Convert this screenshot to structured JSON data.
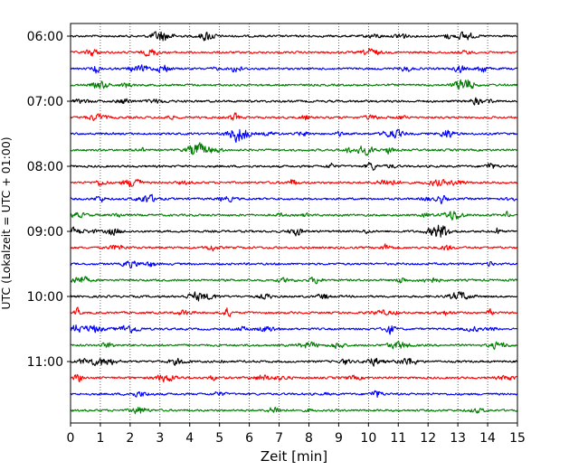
{
  "chart_data": {
    "type": "line",
    "chart_kind": "helicorder",
    "xlabel": "Zeit  [min]",
    "ylabel": "UTC (Lokalzeit = UTC + 01:00)",
    "xlim": [
      0,
      15
    ],
    "xticks": [
      "0",
      "1",
      "2",
      "3",
      "4",
      "5",
      "6",
      "7",
      "8",
      "9",
      "10",
      "11",
      "12",
      "13",
      "14",
      "15"
    ],
    "yticks": [
      "06:00",
      "07:00",
      "08:00",
      "09:00",
      "10:00",
      "11:00"
    ],
    "grid": "vertical dotted lines at each minute",
    "trace_colors": [
      "#000000",
      "#ff0000",
      "#0000ff",
      "#008000"
    ],
    "traces": [
      {
        "start": "06:00",
        "color": "#000000"
      },
      {
        "start": "06:15",
        "color": "#ff0000"
      },
      {
        "start": "06:30",
        "color": "#0000ff"
      },
      {
        "start": "06:45",
        "color": "#008000"
      },
      {
        "start": "07:00",
        "color": "#000000"
      },
      {
        "start": "07:15",
        "color": "#ff0000"
      },
      {
        "start": "07:30",
        "color": "#0000ff"
      },
      {
        "start": "07:45",
        "color": "#008000"
      },
      {
        "start": "08:00",
        "color": "#000000"
      },
      {
        "start": "08:15",
        "color": "#ff0000"
      },
      {
        "start": "08:30",
        "color": "#0000ff"
      },
      {
        "start": "08:45",
        "color": "#008000"
      },
      {
        "start": "09:00",
        "color": "#000000"
      },
      {
        "start": "09:15",
        "color": "#ff0000"
      },
      {
        "start": "09:30",
        "color": "#0000ff"
      },
      {
        "start": "09:45",
        "color": "#008000"
      },
      {
        "start": "10:00",
        "color": "#000000"
      },
      {
        "start": "10:15",
        "color": "#ff0000"
      },
      {
        "start": "10:30",
        "color": "#0000ff"
      },
      {
        "start": "10:45",
        "color": "#008000"
      },
      {
        "start": "11:00",
        "color": "#000000"
      },
      {
        "start": "11:15",
        "color": "#ff0000"
      },
      {
        "start": "11:30",
        "color": "#0000ff"
      },
      {
        "start": "11:45",
        "color": "#008000"
      }
    ]
  }
}
